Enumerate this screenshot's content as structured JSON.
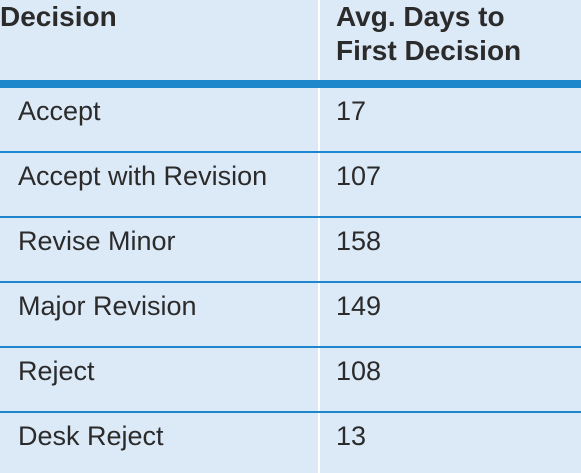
{
  "chart_data": {
    "type": "table",
    "columns": [
      "Decision",
      "Avg. Days to\nFirst Decision"
    ],
    "header_line1": [
      "Decision",
      "Avg. Days to"
    ],
    "header_line2": [
      "",
      "First Decision"
    ],
    "rows": [
      {
        "decision": "Accept",
        "days": "17"
      },
      {
        "decision": "Accept with Revision",
        "days": "107"
      },
      {
        "decision": "Revise Minor",
        "days": "158"
      },
      {
        "decision": "Major Revision",
        "days": "149"
      },
      {
        "decision": "Reject",
        "days": "108"
      },
      {
        "decision": "Desk Reject",
        "days": "13"
      }
    ]
  },
  "colors": {
    "background": "#dce9f7",
    "rule": "#1e87cc",
    "text": "#2b2b2b",
    "divider": "#ffffff"
  }
}
